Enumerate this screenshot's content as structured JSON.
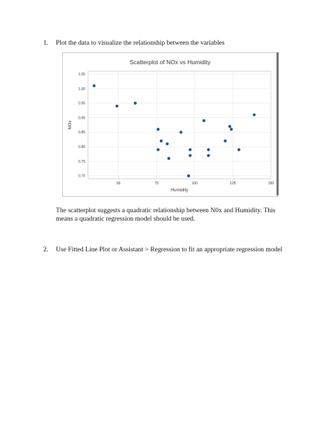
{
  "items": [
    {
      "number": "1.",
      "text": "Plot the data to visualize the relationship between the variables"
    },
    {
      "number": "2.",
      "text": "Use Fitted Line Plot or Assistant > Regression to fit an appropriate regression model"
    }
  ],
  "paragraph": "The scatterplot suggests a quadratic relationship between N0x and Humidity. This means a quadratic regression model should be used.",
  "colors": {
    "point": "#1f4e99",
    "grid": "#e6e6e6",
    "frame": "#c8c8c8"
  },
  "chart_data": {
    "type": "scatter",
    "title": "Scatterplot of NOx vs Humidity",
    "xlabel": "Humidity",
    "ylabel": "NOx",
    "xlim": [
      30,
      150
    ],
    "ylim": [
      0.69,
      1.06
    ],
    "xticks": [
      50,
      75,
      100,
      125,
      150
    ],
    "yticks": [
      0.7,
      0.75,
      0.8,
      0.85,
      0.9,
      0.95,
      1.0,
      1.05
    ],
    "grid": true,
    "x": [
      34,
      49,
      61,
      76,
      76,
      78,
      82,
      83,
      91,
      96,
      97,
      97,
      106,
      109,
      109,
      120,
      123,
      124,
      129,
      139
    ],
    "y": [
      1.01,
      0.94,
      0.95,
      0.86,
      0.79,
      0.82,
      0.81,
      0.76,
      0.85,
      0.7,
      0.77,
      0.79,
      0.89,
      0.79,
      0.77,
      0.82,
      0.87,
      0.86,
      0.79,
      0.91
    ]
  }
}
